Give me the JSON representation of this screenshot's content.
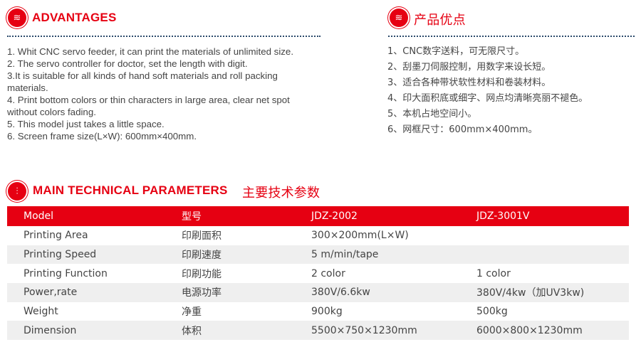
{
  "advantages": {
    "title": "ADVANTAGES",
    "items": [
      "1. Whit CNC servo feeder, it can print the materials of unlimited size.",
      "2. The servo controller for doctor, set the length with digit.",
      "3.It is suitable for all kinds of hand soft materials and roll packing",
      "materials.",
      "4. Print bottom colors or thin characters in large area, clear net spot",
      "without colors fading.",
      "5. This model just takes a little space.",
      "6. Screen frame size(L×W): 600mm×400mm."
    ]
  },
  "advantages_cn": {
    "title": "产品优点",
    "items": [
      "1、CNC数字送料，可无限尺寸。",
      "2、刮墨刀伺服控制，用数字来设长短。",
      "3、适合各种带状软性材料和卷装材料。",
      "4、印大面积底或细字、网点均清晰亮丽不褪色。",
      "5、本机占地空间小。",
      "6、网框尺寸：600mm×400mm。"
    ]
  },
  "params": {
    "title": "MAIN TECHNICAL PARAMETERS",
    "title_cn": "主要技术参数",
    "header": [
      "Model",
      "型号",
      "JDZ-2002",
      "JDZ-3001V"
    ],
    "rows": [
      [
        "Printing Area",
        "印刷面积",
        "300×200mm(L×W)",
        ""
      ],
      [
        "Printing Speed",
        "印刷速度",
        "5 m/min/tape",
        ""
      ],
      [
        "Printing Function",
        "印刷功能",
        "2 color",
        "1 color"
      ],
      [
        " Power,rate",
        "电源功率",
        "380V/6.6kw",
        "380V/4kw（加UV3kw)"
      ],
      [
        "Weight",
        "净重",
        "900kg",
        "500kg"
      ],
      [
        "Dimension",
        "体积",
        "5500×750×1230mm",
        "6000×800×1230mm"
      ]
    ]
  },
  "colors": {
    "accent": "#e60012",
    "row_alt": "#efefef",
    "divider": "#2b4a6b"
  }
}
